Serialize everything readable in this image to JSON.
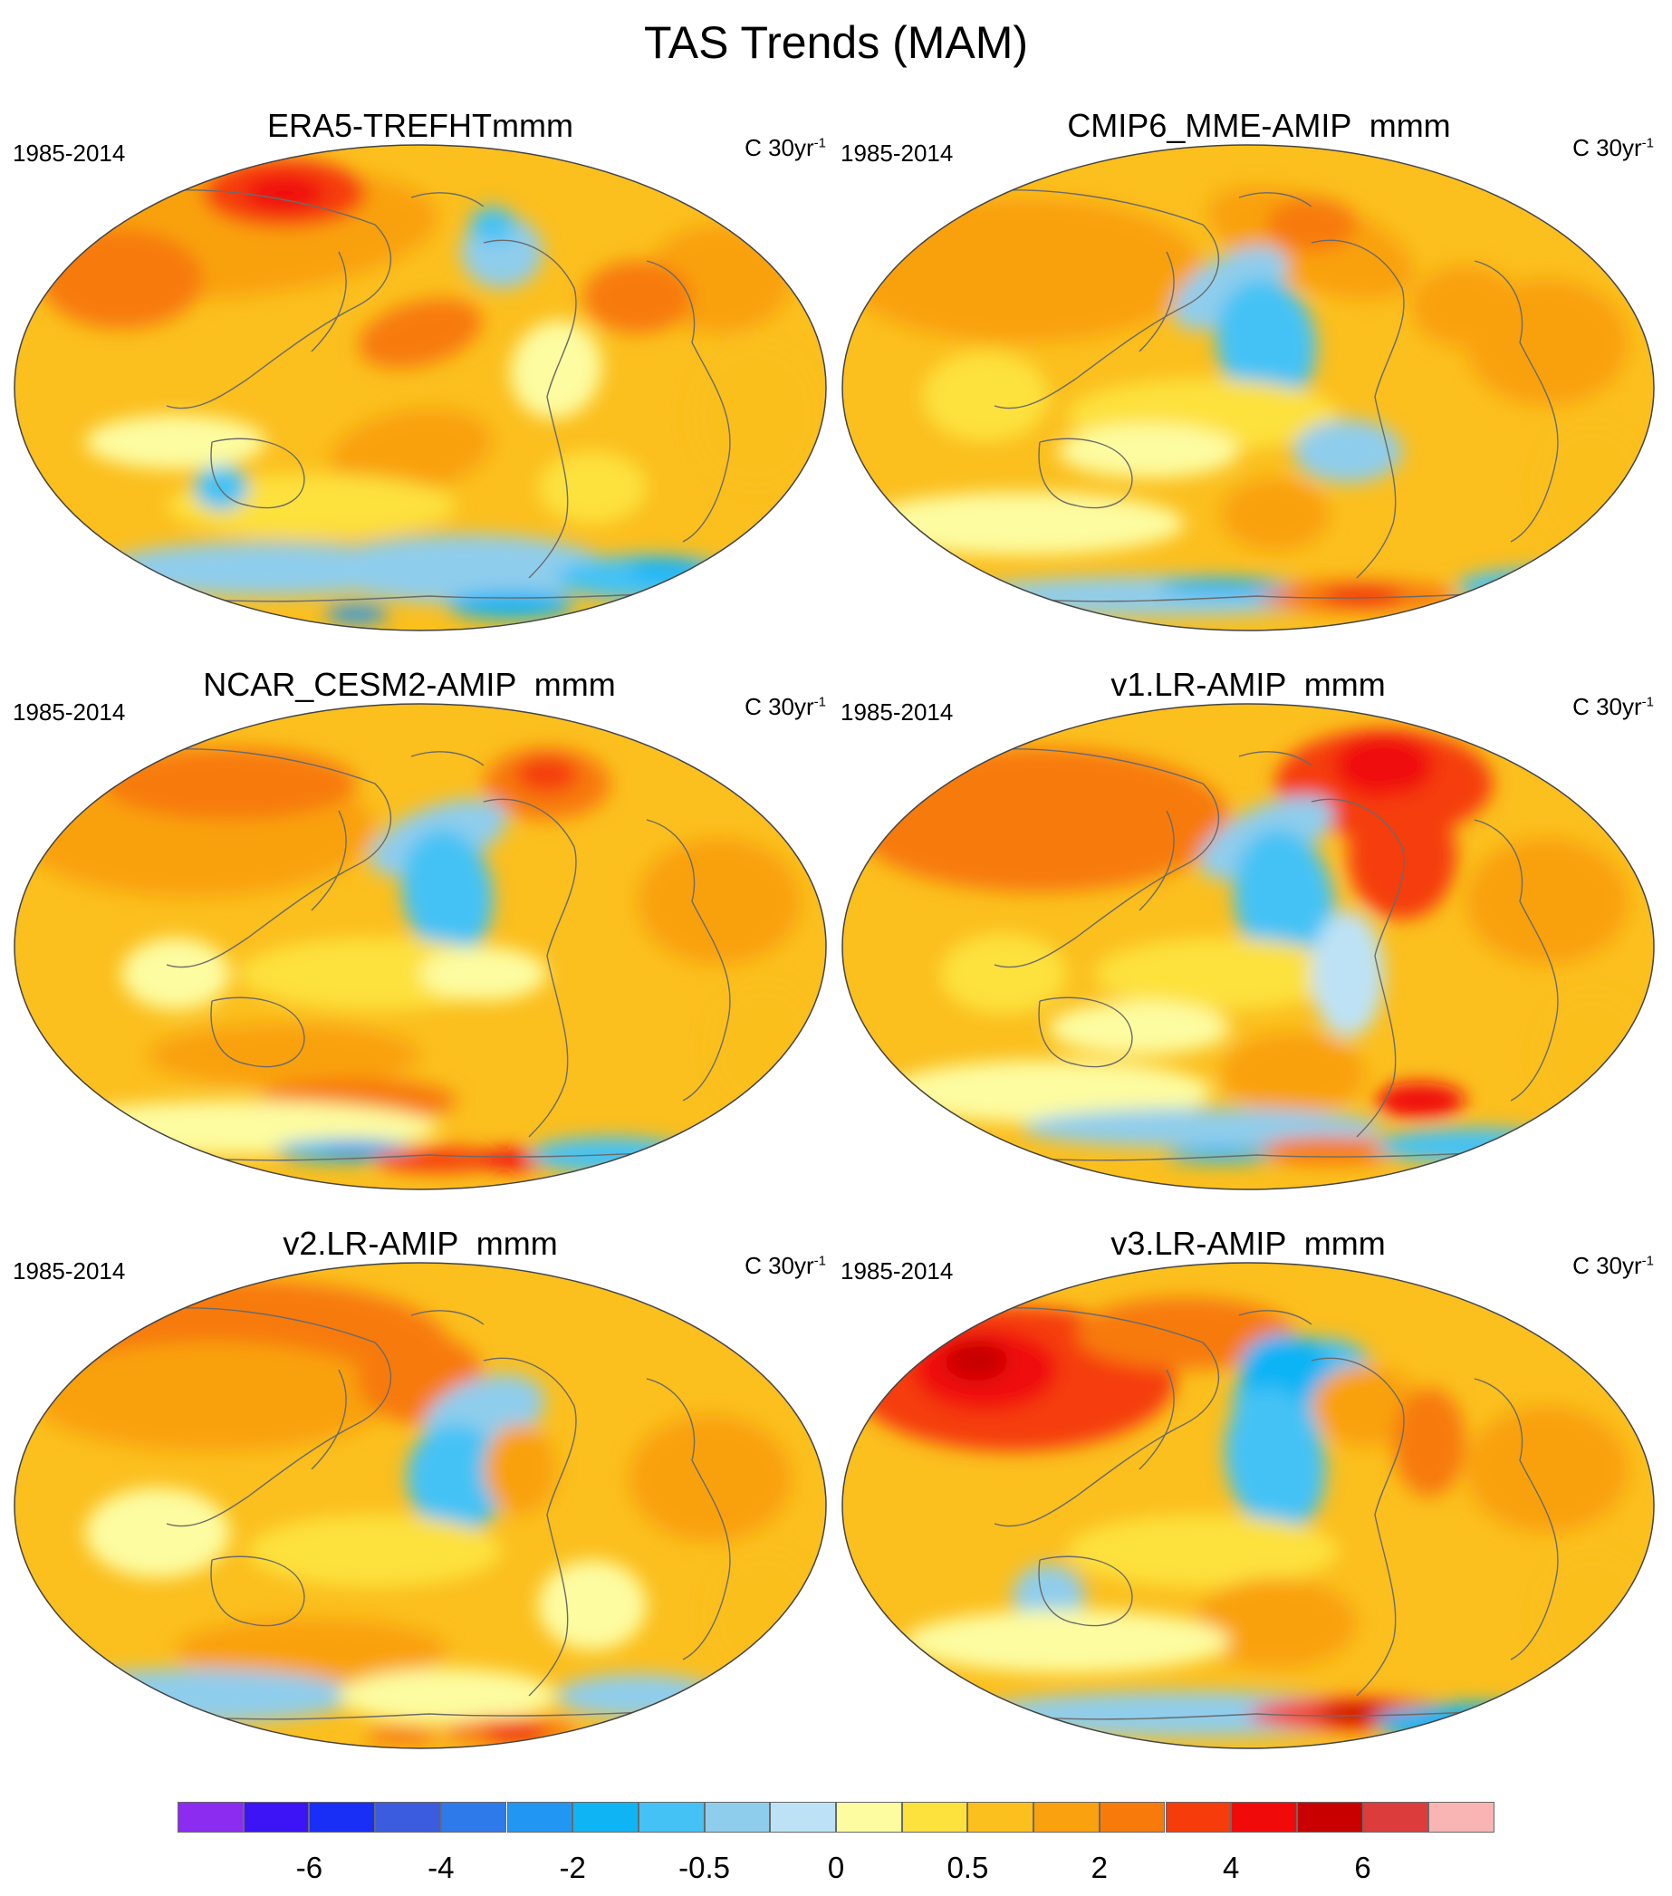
{
  "figure": {
    "title": "TAS Trends (MAM)"
  },
  "panels": [
    {
      "title": "ERA5-TREFHTmmm",
      "period": "1985-2014",
      "units_base": "C 30yr",
      "units_exp": "-1",
      "pattern": "era5"
    },
    {
      "title": "CMIP6_MME-AMIP  mmm",
      "period": "1985-2014",
      "units_base": "C 30yr",
      "units_exp": "-1",
      "pattern": "cmip6"
    },
    {
      "title": "NCAR_CESM2-AMIP  mmm",
      "period": "1985-2014",
      "units_base": "C 30yr",
      "units_exp": "-1",
      "pattern": "cesm2"
    },
    {
      "title": "v1.LR-AMIP  mmm",
      "period": "1985-2014",
      "units_base": "C 30yr",
      "units_exp": "-1",
      "pattern": "v1"
    },
    {
      "title": "v2.LR-AMIP  mmm",
      "period": "1985-2014",
      "units_base": "C 30yr",
      "units_exp": "-1",
      "pattern": "v2"
    },
    {
      "title": "v3.LR-AMIP  mmm",
      "period": "1985-2014",
      "units_base": "C 30yr",
      "units_exp": "-1",
      "pattern": "v3"
    }
  ],
  "colorbar": {
    "colors": [
      "#8b2cf0",
      "#3c14f5",
      "#1a2ff5",
      "#3c5ce0",
      "#2f7aeb",
      "#2196f3",
      "#0fb4f5",
      "#44c2f5",
      "#8fcdec",
      "#bde2f5",
      "#fdfca0",
      "#fde13c",
      "#fbbf1e",
      "#f9a10f",
      "#f77a0a",
      "#f53c0a",
      "#f00a0a",
      "#c80000",
      "#dc3c3c",
      "#f9b4b4"
    ],
    "labels": [
      {
        "text": "-6",
        "boundary": 2
      },
      {
        "text": "-4",
        "boundary": 4
      },
      {
        "text": "-2",
        "boundary": 6
      },
      {
        "text": "-0.5",
        "boundary": 8
      },
      {
        "text": "0",
        "boundary": 10
      },
      {
        "text": "0.5",
        "boundary": 12
      },
      {
        "text": "2",
        "boundary": 14
      },
      {
        "text": "4",
        "boundary": 16
      },
      {
        "text": "6",
        "boundary": 18
      }
    ]
  }
}
